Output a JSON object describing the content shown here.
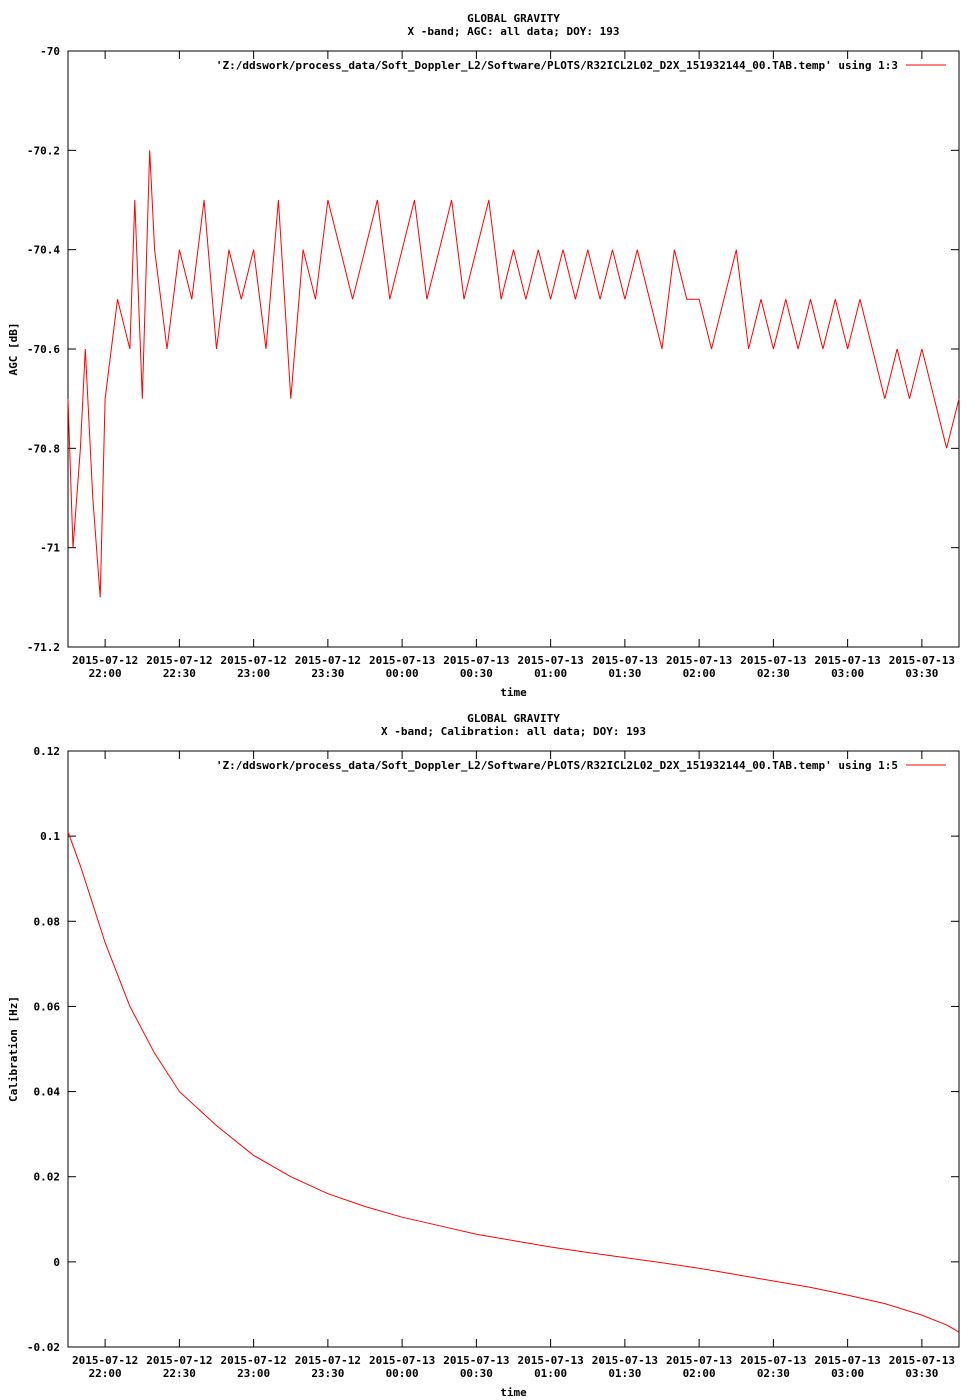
{
  "chart_data": [
    {
      "type": "line",
      "title": "GLOBAL GRAVITY",
      "subtitle": "X -band; AGC: all data; DOY: 193",
      "xlabel": "time",
      "ylabel": "AGC [dB]",
      "ylim": [
        -71.2,
        -70
      ],
      "yticks": [
        -70,
        -70.2,
        -70.4,
        -70.6,
        -70.8,
        -71,
        -71.2
      ],
      "ytick_labels": [
        "-70",
        "-70.2",
        "-70.4",
        "-70.6",
        "-70.8",
        "-71",
        "-71.2"
      ],
      "xlim": [
        "2015-07-12 21:45",
        "2015-07-13 03:45"
      ],
      "xticks": [
        "2015-07-12 22:00",
        "2015-07-12 22:30",
        "2015-07-12 23:00",
        "2015-07-12 23:30",
        "2015-07-13 00:00",
        "2015-07-13 00:30",
        "2015-07-13 01:00",
        "2015-07-13 01:30",
        "2015-07-13 02:00",
        "2015-07-13 02:30",
        "2015-07-13 03:00",
        "2015-07-13 03:30"
      ],
      "xtick_dates": [
        "2015-07-12",
        "2015-07-12",
        "2015-07-12",
        "2015-07-12",
        "2015-07-13",
        "2015-07-13",
        "2015-07-13",
        "2015-07-13",
        "2015-07-13",
        "2015-07-13",
        "2015-07-13",
        "2015-07-13"
      ],
      "xtick_times": [
        "22:00",
        "22:30",
        "23:00",
        "23:30",
        "00:00",
        "00:30",
        "01:00",
        "01:30",
        "02:00",
        "02:30",
        "03:00",
        "03:30"
      ],
      "grid": false,
      "legend_position": "top-right",
      "color": "#ff0000",
      "series": [
        {
          "name": "'Z:/ddswork/process_data/Soft_Doppler_L2/Software/PLOTS/R32ICL2L02_D2X_151932144_00.TAB.temp' using 1:3",
          "points": [
            [
              "2015-07-12 21:45",
              -70.7
            ],
            [
              "2015-07-12 21:47",
              -71.0
            ],
            [
              "2015-07-12 21:50",
              -70.8
            ],
            [
              "2015-07-12 21:52",
              -70.6
            ],
            [
              "2015-07-12 21:55",
              -70.9
            ],
            [
              "2015-07-12 21:58",
              -71.1
            ],
            [
              "2015-07-12 22:00",
              -70.7
            ],
            [
              "2015-07-12 22:05",
              -70.5
            ],
            [
              "2015-07-12 22:10",
              -70.6
            ],
            [
              "2015-07-12 22:12",
              -70.3
            ],
            [
              "2015-07-12 22:15",
              -70.7
            ],
            [
              "2015-07-12 22:18",
              -70.2
            ],
            [
              "2015-07-12 22:20",
              -70.4
            ],
            [
              "2015-07-12 22:25",
              -70.6
            ],
            [
              "2015-07-12 22:30",
              -70.4
            ],
            [
              "2015-07-12 22:35",
              -70.5
            ],
            [
              "2015-07-12 22:40",
              -70.3
            ],
            [
              "2015-07-12 22:45",
              -70.6
            ],
            [
              "2015-07-12 22:50",
              -70.4
            ],
            [
              "2015-07-12 22:55",
              -70.5
            ],
            [
              "2015-07-12 23:00",
              -70.4
            ],
            [
              "2015-07-12 23:05",
              -70.6
            ],
            [
              "2015-07-12 23:10",
              -70.3
            ],
            [
              "2015-07-12 23:15",
              -70.7
            ],
            [
              "2015-07-12 23:20",
              -70.4
            ],
            [
              "2015-07-12 23:25",
              -70.5
            ],
            [
              "2015-07-12 23:30",
              -70.3
            ],
            [
              "2015-07-12 23:35",
              -70.4
            ],
            [
              "2015-07-12 23:40",
              -70.5
            ],
            [
              "2015-07-12 23:45",
              -70.4
            ],
            [
              "2015-07-12 23:50",
              -70.3
            ],
            [
              "2015-07-12 23:55",
              -70.5
            ],
            [
              "2015-07-13 00:00",
              -70.4
            ],
            [
              "2015-07-13 00:05",
              -70.3
            ],
            [
              "2015-07-13 00:10",
              -70.5
            ],
            [
              "2015-07-13 00:15",
              -70.4
            ],
            [
              "2015-07-13 00:20",
              -70.3
            ],
            [
              "2015-07-13 00:25",
              -70.5
            ],
            [
              "2015-07-13 00:30",
              -70.4
            ],
            [
              "2015-07-13 00:35",
              -70.3
            ],
            [
              "2015-07-13 00:40",
              -70.5
            ],
            [
              "2015-07-13 00:45",
              -70.4
            ],
            [
              "2015-07-13 00:50",
              -70.5
            ],
            [
              "2015-07-13 00:55",
              -70.4
            ],
            [
              "2015-07-13 01:00",
              -70.5
            ],
            [
              "2015-07-13 01:05",
              -70.4
            ],
            [
              "2015-07-13 01:10",
              -70.5
            ],
            [
              "2015-07-13 01:15",
              -70.4
            ],
            [
              "2015-07-13 01:20",
              -70.5
            ],
            [
              "2015-07-13 01:25",
              -70.4
            ],
            [
              "2015-07-13 01:30",
              -70.5
            ],
            [
              "2015-07-13 01:35",
              -70.4
            ],
            [
              "2015-07-13 01:40",
              -70.5
            ],
            [
              "2015-07-13 01:45",
              -70.6
            ],
            [
              "2015-07-13 01:50",
              -70.4
            ],
            [
              "2015-07-13 01:55",
              -70.5
            ],
            [
              "2015-07-13 02:00",
              -70.5
            ],
            [
              "2015-07-13 02:05",
              -70.6
            ],
            [
              "2015-07-13 02:10",
              -70.5
            ],
            [
              "2015-07-13 02:15",
              -70.4
            ],
            [
              "2015-07-13 02:20",
              -70.6
            ],
            [
              "2015-07-13 02:25",
              -70.5
            ],
            [
              "2015-07-13 02:30",
              -70.6
            ],
            [
              "2015-07-13 02:35",
              -70.5
            ],
            [
              "2015-07-13 02:40",
              -70.6
            ],
            [
              "2015-07-13 02:45",
              -70.5
            ],
            [
              "2015-07-13 02:50",
              -70.6
            ],
            [
              "2015-07-13 02:55",
              -70.5
            ],
            [
              "2015-07-13 03:00",
              -70.6
            ],
            [
              "2015-07-13 03:05",
              -70.5
            ],
            [
              "2015-07-13 03:10",
              -70.6
            ],
            [
              "2015-07-13 03:15",
              -70.7
            ],
            [
              "2015-07-13 03:20",
              -70.6
            ],
            [
              "2015-07-13 03:25",
              -70.7
            ],
            [
              "2015-07-13 03:30",
              -70.6
            ],
            [
              "2015-07-13 03:35",
              -70.7
            ],
            [
              "2015-07-13 03:40",
              -70.8
            ],
            [
              "2015-07-13 03:45",
              -70.7
            ]
          ]
        }
      ]
    },
    {
      "type": "line",
      "title": "GLOBAL GRAVITY",
      "subtitle": "X -band; Calibration: all data; DOY: 193",
      "xlabel": "time",
      "ylabel": "Calibration [Hz]",
      "ylim": [
        -0.02,
        0.12
      ],
      "yticks": [
        0.12,
        0.1,
        0.08,
        0.06,
        0.04,
        0.02,
        0,
        -0.02
      ],
      "ytick_labels": [
        "0.12",
        "0.1",
        "0.08",
        "0.06",
        "0.04",
        "0.02",
        "0",
        "-0.02"
      ],
      "xlim": [
        "2015-07-12 21:45",
        "2015-07-13 03:45"
      ],
      "xticks": [
        "2015-07-12 22:00",
        "2015-07-12 22:30",
        "2015-07-12 23:00",
        "2015-07-12 23:30",
        "2015-07-13 00:00",
        "2015-07-13 00:30",
        "2015-07-13 01:00",
        "2015-07-13 01:30",
        "2015-07-13 02:00",
        "2015-07-13 02:30",
        "2015-07-13 03:00",
        "2015-07-13 03:30"
      ],
      "xtick_dates": [
        "2015-07-12",
        "2015-07-12",
        "2015-07-12",
        "2015-07-12",
        "2015-07-13",
        "2015-07-13",
        "2015-07-13",
        "2015-07-13",
        "2015-07-13",
        "2015-07-13",
        "2015-07-13",
        "2015-07-13"
      ],
      "xtick_times": [
        "22:00",
        "22:30",
        "23:00",
        "23:30",
        "00:00",
        "00:30",
        "01:00",
        "01:30",
        "02:00",
        "02:30",
        "03:00",
        "03:30"
      ],
      "grid": false,
      "legend_position": "top-right",
      "color": "#ff0000",
      "series": [
        {
          "name": "'Z:/ddswork/process_data/Soft_Doppler_L2/Software/PLOTS/R32ICL2L02_D2X_151932144_00.TAB.temp' using 1:5",
          "points": [
            [
              "2015-07-12 21:45",
              0.101
            ],
            [
              "2015-07-12 21:50",
              0.093
            ],
            [
              "2015-07-12 21:55",
              0.084
            ],
            [
              "2015-07-12 22:00",
              0.075
            ],
            [
              "2015-07-12 22:10",
              0.06
            ],
            [
              "2015-07-12 22:20",
              0.049
            ],
            [
              "2015-07-12 22:30",
              0.04
            ],
            [
              "2015-07-12 22:45",
              0.032
            ],
            [
              "2015-07-12 23:00",
              0.025
            ],
            [
              "2015-07-12 23:15",
              0.02
            ],
            [
              "2015-07-12 23:30",
              0.016
            ],
            [
              "2015-07-12 23:45",
              0.013
            ],
            [
              "2015-07-13 00:00",
              0.0105
            ],
            [
              "2015-07-13 00:15",
              0.0085
            ],
            [
              "2015-07-13 00:30",
              0.0065
            ],
            [
              "2015-07-13 00:45",
              0.005
            ],
            [
              "2015-07-13 01:00",
              0.0035
            ],
            [
              "2015-07-13 01:15",
              0.0022
            ],
            [
              "2015-07-13 01:30",
              0.001
            ],
            [
              "2015-07-13 01:45",
              -0.0002
            ],
            [
              "2015-07-13 02:00",
              -0.0015
            ],
            [
              "2015-07-13 02:15",
              -0.003
            ],
            [
              "2015-07-13 02:30",
              -0.0045
            ],
            [
              "2015-07-13 02:45",
              -0.006
            ],
            [
              "2015-07-13 03:00",
              -0.0078
            ],
            [
              "2015-07-13 03:15",
              -0.0098
            ],
            [
              "2015-07-13 03:30",
              -0.0125
            ],
            [
              "2015-07-13 03:40",
              -0.0148
            ],
            [
              "2015-07-13 03:45",
              -0.0165
            ]
          ]
        }
      ]
    }
  ]
}
